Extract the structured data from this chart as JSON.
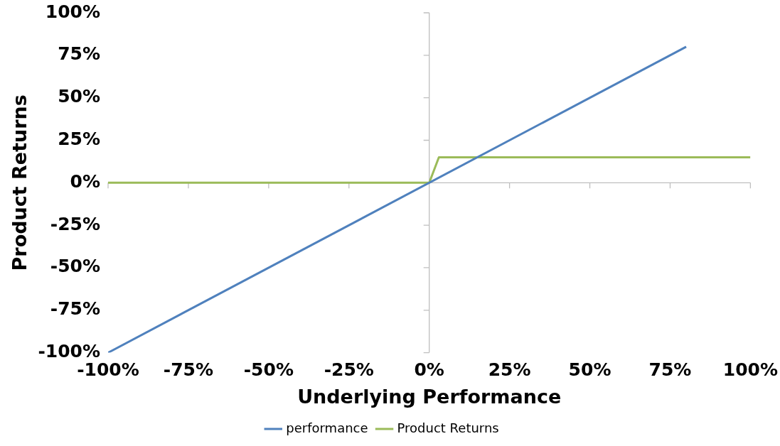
{
  "chart_data": {
    "type": "line",
    "xlabel": "Underlying Performance",
    "ylabel": "Product Returns",
    "xlim": [
      -100,
      100
    ],
    "ylim": [
      -100,
      100
    ],
    "xticks": [
      {
        "value": -100,
        "label": "-100%"
      },
      {
        "value": -75,
        "label": "-75%"
      },
      {
        "value": -50,
        "label": "-50%"
      },
      {
        "value": -25,
        "label": "-25%"
      },
      {
        "value": 0,
        "label": "0%"
      },
      {
        "value": 25,
        "label": "25%"
      },
      {
        "value": 50,
        "label": "50%"
      },
      {
        "value": 75,
        "label": "75%"
      },
      {
        "value": 100,
        "label": "100%"
      }
    ],
    "yticks": [
      {
        "value": -100,
        "label": "-100%"
      },
      {
        "value": -75,
        "label": "-75%"
      },
      {
        "value": -50,
        "label": "-50%"
      },
      {
        "value": -25,
        "label": "-25%"
      },
      {
        "value": 0,
        "label": "0%"
      },
      {
        "value": 25,
        "label": "25%"
      },
      {
        "value": 50,
        "label": "50%"
      },
      {
        "value": 75,
        "label": "75%"
      },
      {
        "value": 100,
        "label": "100%"
      }
    ],
    "series": [
      {
        "name": "performance",
        "color": "#4f81bd",
        "x": [
          -100,
          80
        ],
        "values": [
          -100,
          80
        ]
      },
      {
        "name": "Product Returns",
        "color": "#9bbb59",
        "x": [
          -100,
          0,
          3,
          100
        ],
        "values": [
          0,
          0,
          15,
          15
        ]
      }
    ],
    "legend": "bottom",
    "marker": "none",
    "line_style": "solid"
  }
}
